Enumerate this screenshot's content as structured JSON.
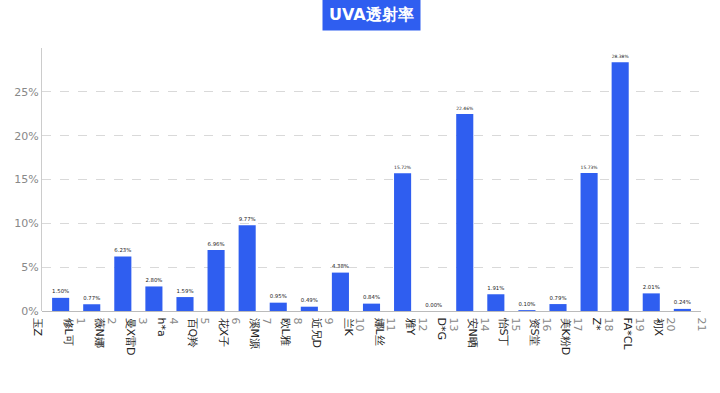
{
  "chart_data": {
    "type": "bar",
    "title": "UVA透射率",
    "numbers": [
      1,
      2,
      3,
      4,
      5,
      6,
      7,
      8,
      9,
      10,
      11,
      12,
      13,
      14,
      15,
      16,
      17,
      18,
      19,
      20,
      21
    ],
    "categories": [
      "玉Z",
      "修L可",
      "薇N娜",
      "曼X雷D",
      "h*a",
      "百Q羚",
      "花X子",
      "溪M源",
      "欧L雅",
      "近兄D",
      "兰K",
      "娜L丝",
      "雅Y",
      "D*G",
      "安N晒",
      "怡S丁",
      "资S堂",
      "美K粉D",
      "Z*",
      "FA*CL",
      "初X"
    ],
    "values": [
      1.5,
      0.77,
      6.23,
      2.8,
      1.59,
      6.96,
      9.77,
      0.95,
      0.49,
      4.38,
      0.84,
      15.72,
      0.0,
      22.46,
      1.91,
      0.1,
      0.79,
      15.73,
      28.38,
      2.01,
      0.24
    ],
    "value_labels": [
      "1.50%",
      "0.77%",
      "6.23%",
      "2.80%",
      "1.59%",
      "6.96%",
      "9.77%",
      "0.95%",
      "0.49%",
      "4.38%",
      "0.84%",
      "15.72%",
      "0.00%",
      "22.46%",
      "1.91%",
      "0.10%",
      "0.79%",
      "15.73%",
      "28.38%",
      "2.01%",
      "0.24%"
    ],
    "color": "#2f5ef0",
    "ylim": [
      0,
      30
    ],
    "yticks": [
      {
        "value": 0,
        "label": "0%"
      },
      {
        "value": 5,
        "label": "5%"
      },
      {
        "value": 10,
        "label": "10%"
      },
      {
        "value": 15,
        "label": "15%"
      },
      {
        "value": 20,
        "label": "20%"
      },
      {
        "value": 25,
        "label": "25%"
      }
    ],
    "grid": true,
    "data_labels": true
  }
}
